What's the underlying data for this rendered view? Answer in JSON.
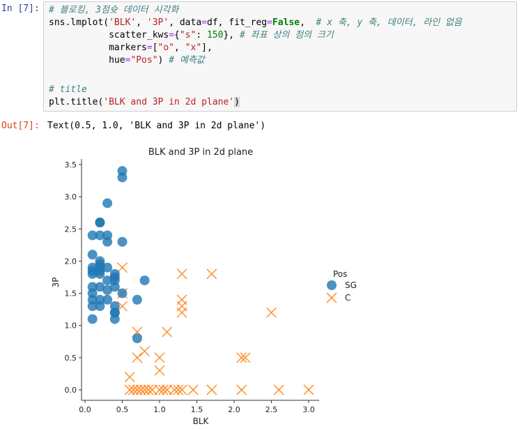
{
  "cell_in": {
    "prompt": "In [7]:",
    "line1_comment": "# 블로킹, 3점슛 데이터 시각화",
    "line2_head": "sns.lmplot(",
    "line2_s1": "'BLK'",
    "line2_sep": ", ",
    "line2_s2": "'3P'",
    "line2_mid": ", data",
    "line2_eq": "=",
    "line2_mid2": "df, fit_reg",
    "line2_kw": "False",
    "line2_tail": ",  ",
    "line2_comment": "# x 축, y 축, 데이터, 라인 없음",
    "line3_head": "scatter_kws",
    "line3_eq": "=",
    "line3_open": "{",
    "line3_s": "\"s\"",
    "line3_colon": ": ",
    "line3_num": "150",
    "line3_close": "}, ",
    "line3_comment": "# 좌표 상의 점의 크기",
    "line4_head": "markers",
    "line4_eq": "=",
    "line4_open": "[",
    "line4_s1": "\"o\"",
    "line4_sep": ", ",
    "line4_s2": "\"x\"",
    "line4_close": "],",
    "line5_head": "hue",
    "line5_eq": "=",
    "line5_s": "\"Pos\"",
    "line5_close": ") ",
    "line5_comment": "# 예측값",
    "line7_comment": "# title",
    "line8_head": "plt.title(",
    "line8_s": "'BLK and 3P in 2d plane'",
    "line8_close": ")"
  },
  "cell_out": {
    "prompt": "Out[7]:",
    "text": "Text(0.5, 1.0, 'BLK and 3P in 2d plane')"
  },
  "chart_data": {
    "type": "scatter",
    "title": "BLK and 3P in 2d plane",
    "xlabel": "BLK",
    "ylabel": "3P",
    "xlim": [
      -0.05,
      3.1
    ],
    "ylim": [
      -0.15,
      3.6
    ],
    "xticks": [
      "0.0",
      "0.5",
      "1.0",
      "1.5",
      "2.0",
      "2.5",
      "3.0"
    ],
    "yticks": [
      "0.0",
      "0.5",
      "1.0",
      "1.5",
      "2.0",
      "2.5",
      "3.0",
      "3.5"
    ],
    "legend": {
      "title": "Pos",
      "position": "right"
    },
    "series": [
      {
        "name": "SG",
        "marker": "o",
        "color": "#1f77b4",
        "points": [
          [
            0.5,
            3.4
          ],
          [
            0.5,
            3.3
          ],
          [
            0.3,
            2.9
          ],
          [
            0.2,
            2.6
          ],
          [
            0.2,
            2.6
          ],
          [
            0.1,
            2.4
          ],
          [
            0.2,
            2.4
          ],
          [
            0.3,
            2.4
          ],
          [
            0.3,
            2.3
          ],
          [
            0.5,
            2.3
          ],
          [
            0.1,
            2.1
          ],
          [
            0.2,
            2.0
          ],
          [
            0.2,
            1.95
          ],
          [
            0.1,
            1.9
          ],
          [
            0.2,
            1.9
          ],
          [
            0.3,
            1.9
          ],
          [
            0.1,
            1.85
          ],
          [
            0.2,
            1.85
          ],
          [
            0.1,
            1.8
          ],
          [
            0.2,
            1.8
          ],
          [
            0.4,
            1.8
          ],
          [
            0.4,
            1.75
          ],
          [
            0.3,
            1.7
          ],
          [
            0.4,
            1.7
          ],
          [
            0.8,
            1.7
          ],
          [
            0.1,
            1.6
          ],
          [
            0.2,
            1.6
          ],
          [
            0.4,
            1.6
          ],
          [
            0.1,
            1.5
          ],
          [
            0.3,
            1.55
          ],
          [
            0.5,
            1.5
          ],
          [
            0.1,
            1.4
          ],
          [
            0.2,
            1.4
          ],
          [
            0.3,
            1.4
          ],
          [
            0.7,
            1.4
          ],
          [
            0.1,
            1.3
          ],
          [
            0.2,
            1.3
          ],
          [
            0.4,
            1.3
          ],
          [
            0.4,
            1.2
          ],
          [
            0.4,
            1.2
          ],
          [
            0.1,
            1.1
          ],
          [
            0.4,
            1.1
          ],
          [
            0.7,
            0.8
          ]
        ]
      },
      {
        "name": "C",
        "marker": "x",
        "color": "#ff7f0e",
        "points": [
          [
            0.5,
            1.9
          ],
          [
            1.3,
            1.8
          ],
          [
            1.7,
            1.8
          ],
          [
            0.5,
            1.5
          ],
          [
            1.3,
            1.4
          ],
          [
            0.5,
            1.3
          ],
          [
            1.3,
            1.3
          ],
          [
            1.3,
            1.2
          ],
          [
            2.5,
            1.2
          ],
          [
            0.7,
            0.9
          ],
          [
            1.1,
            0.9
          ],
          [
            0.8,
            0.6
          ],
          [
            0.7,
            0.5
          ],
          [
            1.0,
            0.5
          ],
          [
            2.1,
            0.5
          ],
          [
            2.15,
            0.5
          ],
          [
            1.0,
            0.3
          ],
          [
            0.6,
            0.2
          ],
          [
            0.6,
            0.0
          ],
          [
            0.65,
            0.0
          ],
          [
            0.7,
            0.0
          ],
          [
            0.75,
            0.0
          ],
          [
            0.8,
            0.0
          ],
          [
            0.85,
            0.0
          ],
          [
            0.9,
            0.0
          ],
          [
            1.0,
            0.0
          ],
          [
            1.05,
            0.0
          ],
          [
            1.1,
            0.0
          ],
          [
            1.2,
            0.0
          ],
          [
            1.25,
            0.0
          ],
          [
            1.3,
            0.0
          ],
          [
            1.45,
            0.0
          ],
          [
            1.7,
            0.0
          ],
          [
            2.1,
            0.0
          ],
          [
            2.6,
            0.0
          ],
          [
            3.0,
            0.0
          ]
        ]
      }
    ]
  }
}
